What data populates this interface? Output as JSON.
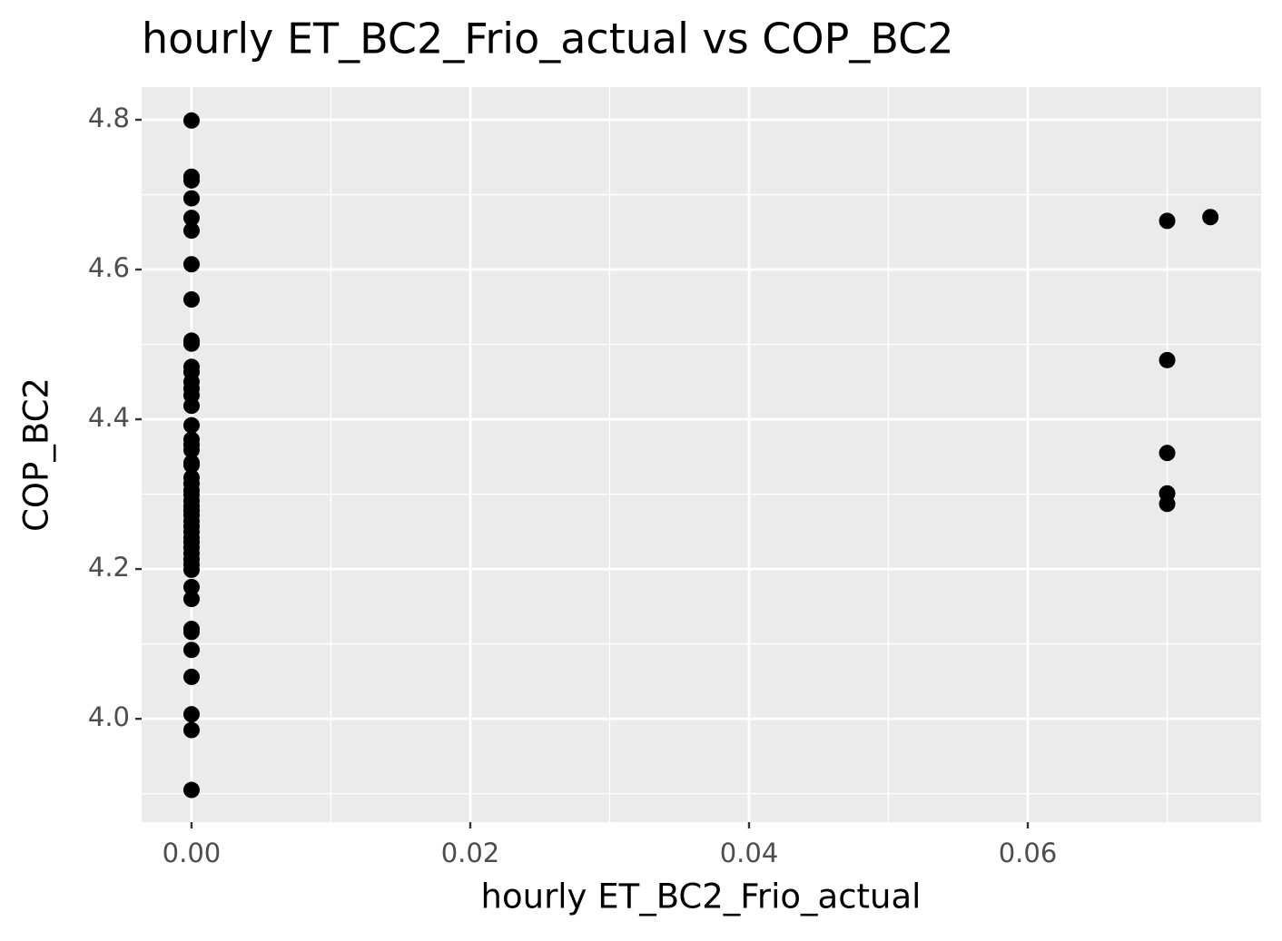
{
  "chart_data": {
    "type": "scatter",
    "title": "hourly ET_BC2_Frio_actual vs COP_BC2",
    "x_label": "hourly ET_BC2_Frio_actual",
    "y_label": "COP_BC2",
    "x": [
      0,
      0,
      0,
      0,
      0,
      0,
      0,
      0,
      0,
      0,
      0,
      0,
      0,
      0,
      0,
      0,
      0,
      0,
      0,
      0,
      0,
      0,
      0,
      0,
      0,
      0,
      0,
      0,
      0,
      0,
      0,
      0,
      0,
      0,
      0,
      0,
      0,
      0,
      0,
      0,
      0,
      0,
      0,
      0,
      0,
      0,
      0,
      0,
      0,
      0.07,
      0.07,
      0.07,
      0.07,
      0.07,
      0.0731
    ],
    "values": [
      4.799,
      4.724,
      4.719,
      4.695,
      4.669,
      4.652,
      4.607,
      4.56,
      4.505,
      4.501,
      4.47,
      4.463,
      4.45,
      4.441,
      4.432,
      4.418,
      4.392,
      4.373,
      4.366,
      4.359,
      4.342,
      4.339,
      4.322,
      4.314,
      4.305,
      4.299,
      4.291,
      4.284,
      4.278,
      4.272,
      4.264,
      4.257,
      4.25,
      4.242,
      4.236,
      4.229,
      4.221,
      4.213,
      4.206,
      4.199,
      4.176,
      4.16,
      4.12,
      4.116,
      4.092,
      4.056,
      4.006,
      3.985,
      3.905,
      4.665,
      4.479,
      4.355,
      4.301,
      4.287,
      4.67
    ],
    "color": "#000000",
    "xlim": [
      -0.00358,
      0.07674
    ],
    "ylim": [
      3.862,
      4.8436
    ],
    "xticks": [
      {
        "value": 0,
        "label": "0.00"
      },
      {
        "value": 0.02,
        "label": "0.02"
      },
      {
        "value": 0.04,
        "label": "0.04"
      },
      {
        "value": 0.06,
        "label": "0.06"
      }
    ],
    "yticks": [
      {
        "value": 4,
        "label": "4.0"
      },
      4.2,
      4.4,
      4.6,
      4.8
    ],
    "x_minor_grid": [
      0.01,
      0.03,
      0.05,
      0.07
    ],
    "y_minor_grid": [
      3.9,
      4.1,
      4.3,
      4.5,
      4.7
    ],
    "grid": true
  }
}
